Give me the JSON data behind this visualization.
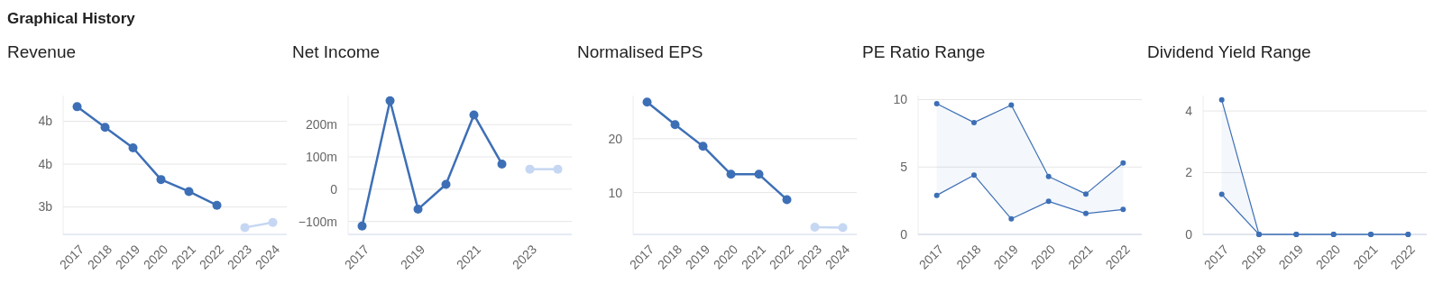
{
  "chart_data": [
    {
      "type": "other",
      "title": "Graphical History"
    },
    {
      "type": "line",
      "title": "Revenue",
      "categories": [
        "2017",
        "2018",
        "2019",
        "2020",
        "2021",
        "2022",
        "2023",
        "2024"
      ],
      "ylim": [
        2.68,
        4.3
      ],
      "yticks": [
        {
          "value": 3,
          "label": "3b"
        },
        {
          "value": 3.5,
          "label": "4b"
        },
        {
          "value": 4,
          "label": "4b"
        }
      ],
      "grid": "y",
      "marker": "circle",
      "series": [
        {
          "color": "#3d6fb6",
          "values": [
            4.17,
            3.93,
            3.69,
            3.32,
            3.18,
            3.02,
            null,
            null
          ]
        },
        {
          "color": "#c5d7f2",
          "values": [
            null,
            null,
            null,
            null,
            null,
            null,
            2.76,
            2.82
          ]
        }
      ]
    },
    {
      "type": "line",
      "title": "Net Income",
      "categories": [
        "2017",
        null,
        "2019",
        null,
        "2021",
        null,
        "2023",
        null
      ],
      "ylim": [
        -140,
        290
      ],
      "yticks": [
        {
          "value": -100,
          "label": "−100m"
        },
        {
          "value": 0,
          "label": "0"
        },
        {
          "value": 100,
          "label": "100m"
        },
        {
          "value": 200,
          "label": "200m"
        }
      ],
      "grid": "y",
      "marker": "circle",
      "series": [
        {
          "color": "#3d6fb6",
          "values": [
            -114,
            274,
            -62,
            15,
            230,
            78,
            null,
            null
          ]
        },
        {
          "color": "#c5d7f2",
          "values": [
            null,
            null,
            null,
            null,
            null,
            null,
            62,
            62
          ]
        }
      ]
    },
    {
      "type": "line",
      "title": "Normalised EPS",
      "categories": [
        "2017",
        "2018",
        "2019",
        "2020",
        "2021",
        "2022",
        "2023",
        "2024"
      ],
      "ylim": [
        2.25,
        28
      ],
      "yticks": [
        10,
        20
      ],
      "grid": "y",
      "marker": "circle",
      "series": [
        {
          "color": "#3d6fb6",
          "values": [
            26.8,
            22.6,
            18.6,
            13.4,
            13.4,
            8.7,
            null,
            null
          ]
        },
        {
          "color": "#c5d7f2",
          "values": [
            null,
            null,
            null,
            null,
            null,
            null,
            3.6,
            3.5
          ]
        }
      ]
    },
    {
      "type": "line",
      "title": "PE Ratio Range",
      "categories": [
        "2017",
        "2018",
        "2019",
        "2020",
        "2021",
        "2022"
      ],
      "ylim": [
        0,
        10.3
      ],
      "yticks": [
        0,
        5,
        10
      ],
      "grid": "y",
      "marker": "circle",
      "series": [
        {
          "color": "#3d6fb6",
          "values": [
            9.7,
            8.3,
            9.6,
            4.3,
            3.0,
            5.3
          ],
          "lower": [
            2.9,
            4.4,
            1.15,
            2.45,
            1.55,
            1.85
          ],
          "upper": [
            9.7,
            8.3,
            9.6,
            4.3,
            3.0,
            5.3
          ]
        },
        {
          "color": "#3d6fb6",
          "values": [
            2.9,
            4.4,
            1.15,
            2.45,
            1.55,
            1.85
          ]
        }
      ]
    },
    {
      "type": "line",
      "title": "Dividend Yield Range",
      "categories": [
        "2017",
        "2018",
        "2019",
        "2020",
        "2021",
        "2022"
      ],
      "ylim": [
        0,
        4.5
      ],
      "yticks": [
        0,
        2,
        4
      ],
      "grid": "y",
      "marker": "circle",
      "series": [
        {
          "color": "#3d6fb6",
          "values": [
            4.36,
            0,
            0,
            0,
            0,
            0
          ],
          "lower": [
            1.3,
            0,
            0,
            0,
            0,
            0
          ],
          "upper": [
            4.36,
            0,
            0,
            0,
            0,
            0
          ]
        },
        {
          "color": "#3d6fb6",
          "values": [
            1.3,
            0,
            0,
            0,
            0,
            0
          ]
        }
      ]
    }
  ]
}
